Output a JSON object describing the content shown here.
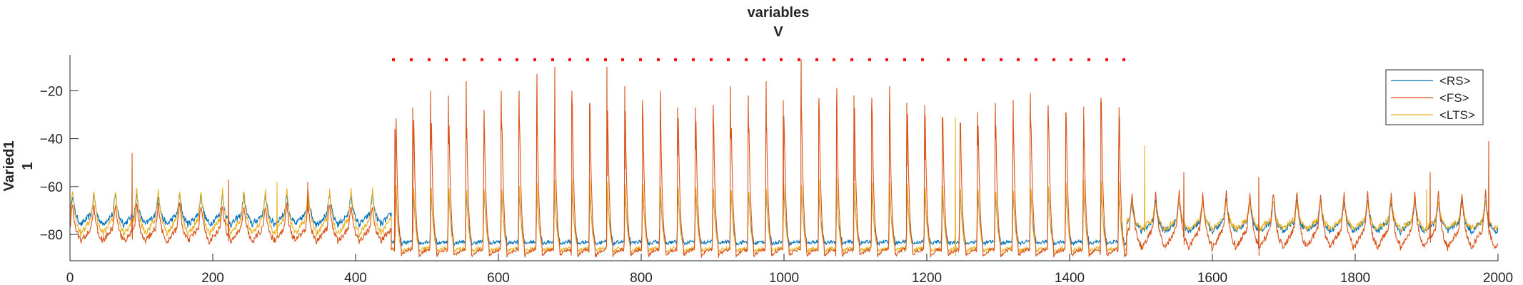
{
  "chart_data": {
    "type": "line",
    "title": "variables",
    "subtitle": "V",
    "ylabel": "Varied1",
    "ylabel_sub": "1",
    "xlabel": "",
    "xlim": [
      0,
      2000
    ],
    "ylim": [
      -91,
      -5
    ],
    "xticks": [
      0,
      200,
      400,
      600,
      800,
      1000,
      1200,
      1400,
      1600,
      1800,
      2000
    ],
    "yticks": [
      -80,
      -60,
      -40,
      -20
    ],
    "grid": false,
    "legend_position": "top-right",
    "colors": {
      "RS": "#0072BD",
      "FS": "#D95319",
      "LTS": "#EDB120",
      "spike_markers": "#FF0000"
    },
    "series": [
      {
        "name": "<RS>",
        "segments": [
          {
            "x_start": 0,
            "x_end": 450,
            "period": 30,
            "first": 15,
            "base": -76,
            "peak": -63,
            "style": "slow"
          },
          {
            "x_start": 450,
            "x_end": 1480,
            "period": 24.7,
            "first": 455,
            "base": -84,
            "peak": -60,
            "style": "fast"
          },
          {
            "x_start": 1480,
            "x_end": 2000,
            "period": 33,
            "first": 1500,
            "base": -79,
            "peak": -66,
            "style": "slow"
          }
        ]
      },
      {
        "name": "<FS>",
        "segments": [
          {
            "x_start": 0,
            "x_end": 450,
            "period": 30,
            "first": 15,
            "base": -83,
            "peak": -67,
            "style": "slow"
          },
          {
            "x_start": 450,
            "x_end": 1480,
            "period": 24.7,
            "first": 455,
            "base": -89,
            "peak": -25,
            "style": "fast"
          },
          {
            "x_start": 1480,
            "x_end": 2000,
            "period": 33,
            "first": 1500,
            "base": -86,
            "peak": -62,
            "style": "slow"
          }
        ],
        "spikes": [
          {
            "x": 87,
            "y": -46
          },
          {
            "x": 222,
            "y": -57
          },
          {
            "x": 333,
            "y": -58
          },
          {
            "x": 455,
            "y": -36
          },
          {
            "x": 480,
            "y": -27
          },
          {
            "x": 505,
            "y": -20
          },
          {
            "x": 530,
            "y": -22
          },
          {
            "x": 555,
            "y": -16
          },
          {
            "x": 580,
            "y": -28
          },
          {
            "x": 604,
            "y": -20
          },
          {
            "x": 629,
            "y": -20
          },
          {
            "x": 654,
            "y": -13
          },
          {
            "x": 679,
            "y": -10
          },
          {
            "x": 703,
            "y": -20
          },
          {
            "x": 728,
            "y": -25
          },
          {
            "x": 752,
            "y": -10
          },
          {
            "x": 777,
            "y": -18
          },
          {
            "x": 802,
            "y": -24
          },
          {
            "x": 827,
            "y": -20
          },
          {
            "x": 851,
            "y": -27
          },
          {
            "x": 876,
            "y": -27
          },
          {
            "x": 901,
            "y": -26
          },
          {
            "x": 925,
            "y": -18
          },
          {
            "x": 950,
            "y": -22
          },
          {
            "x": 975,
            "y": -16
          },
          {
            "x": 999,
            "y": -24
          },
          {
            "x": 1024,
            "y": -7
          },
          {
            "x": 1049,
            "y": -23
          },
          {
            "x": 1074,
            "y": -19
          },
          {
            "x": 1098,
            "y": -22
          },
          {
            "x": 1123,
            "y": -23
          },
          {
            "x": 1148,
            "y": -18
          },
          {
            "x": 1172,
            "y": -25
          },
          {
            "x": 1197,
            "y": -26
          },
          {
            "x": 1222,
            "y": -31
          },
          {
            "x": 1247,
            "y": -34
          },
          {
            "x": 1271,
            "y": -29
          },
          {
            "x": 1296,
            "y": -25
          },
          {
            "x": 1321,
            "y": -24
          },
          {
            "x": 1345,
            "y": -21
          },
          {
            "x": 1370,
            "y": -26
          },
          {
            "x": 1395,
            "y": -36
          },
          {
            "x": 1420,
            "y": -31
          },
          {
            "x": 1444,
            "y": -23
          },
          {
            "x": 1470,
            "y": -31
          },
          {
            "x": 1560,
            "y": -54
          },
          {
            "x": 1665,
            "y": -56
          },
          {
            "x": 1905,
            "y": -54
          },
          {
            "x": 1987,
            "y": -41
          }
        ]
      },
      {
        "name": "<LTS>",
        "segments": [
          {
            "x_start": 0,
            "x_end": 450,
            "period": 30,
            "first": 15,
            "base": -80,
            "peak": -61,
            "style": "slow"
          },
          {
            "x_start": 450,
            "x_end": 1480,
            "period": 24.7,
            "first": 455,
            "base": -87,
            "peak": -57,
            "style": "fast"
          },
          {
            "x_start": 1480,
            "x_end": 2000,
            "period": 33,
            "first": 1500,
            "base": -78,
            "peak": -66,
            "style": "slow"
          }
        ],
        "spikes": [
          {
            "x": 290,
            "y": -58
          },
          {
            "x": 1240,
            "y": -31
          },
          {
            "x": 1505,
            "y": -43
          },
          {
            "x": 1900,
            "y": -61
          }
        ]
      }
    ],
    "spike_raster": {
      "y": -7,
      "x": [
        453,
        478,
        503,
        527,
        552,
        577,
        602,
        626,
        651,
        676,
        700,
        725,
        750,
        774,
        799,
        824,
        848,
        873,
        898,
        922,
        947,
        972,
        996,
        1021,
        1046,
        1070,
        1095,
        1120,
        1144,
        1169,
        1194,
        1230,
        1254,
        1279,
        1304,
        1328,
        1353,
        1378,
        1402,
        1427,
        1452,
        1476
      ]
    }
  }
}
